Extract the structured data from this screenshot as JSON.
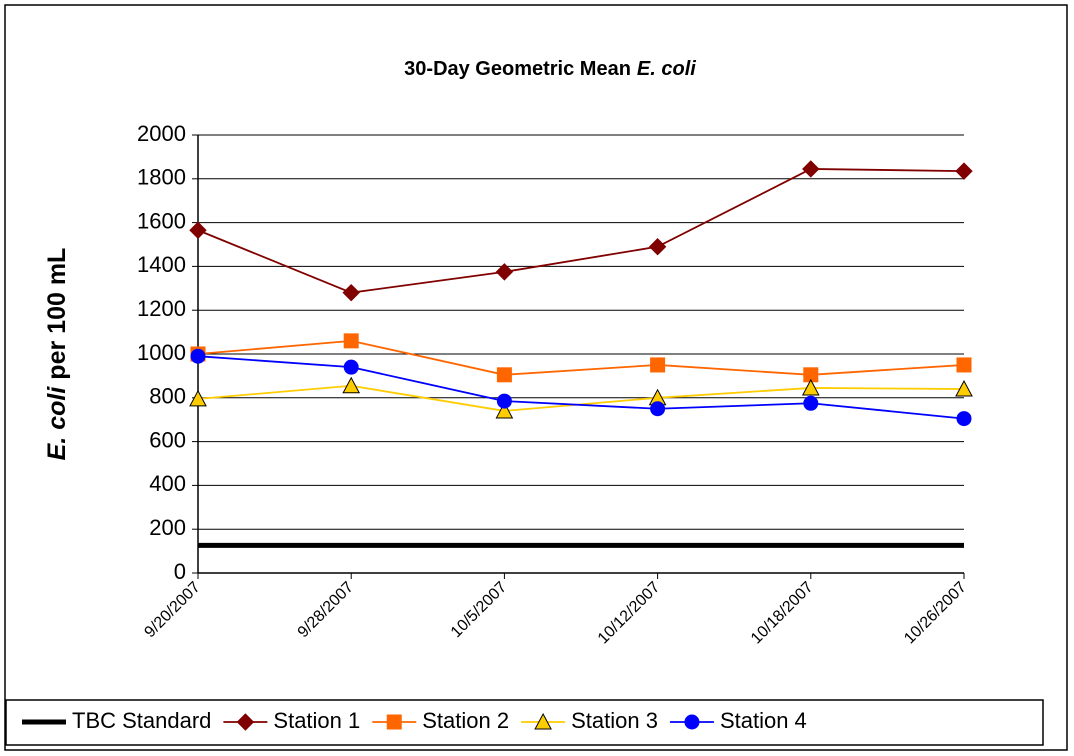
{
  "chart_data": {
    "type": "line",
    "title": [
      "30-Day Geometric Mean",
      "E. coli"
    ],
    "y_label": [
      "E. coli",
      "per 100 mL"
    ],
    "categories": [
      "9/20/2007",
      "9/28/2007",
      "10/5/2007",
      "10/12/2007",
      "10/18/2007",
      "10/26/2007"
    ],
    "ylim": [
      0,
      2000
    ],
    "yticks": [
      0,
      200,
      400,
      600,
      800,
      1000,
      1200,
      1400,
      1600,
      1800,
      2000
    ],
    "grid": true,
    "legend": "bottom",
    "series": [
      {
        "name": "TBC Standard",
        "color": "#000000",
        "marker": "none",
        "values": [
          126,
          126,
          126,
          126,
          126,
          126
        ]
      },
      {
        "name": "Station 1",
        "color": "#800000",
        "marker": "diamond",
        "values": [
          1565,
          1280,
          1375,
          1490,
          1845,
          1835
        ]
      },
      {
        "name": "Station 2",
        "color": "#ff6600",
        "marker": "square",
        "values": [
          1000,
          1060,
          905,
          950,
          905,
          950
        ]
      },
      {
        "name": "Station 3",
        "color": "#ffcc00",
        "marker": "triangle",
        "values": [
          795,
          855,
          740,
          800,
          845,
          840
        ]
      },
      {
        "name": "Station 4",
        "color": "#0000ff",
        "marker": "circle",
        "values": [
          990,
          940,
          785,
          750,
          775,
          705
        ]
      }
    ]
  }
}
